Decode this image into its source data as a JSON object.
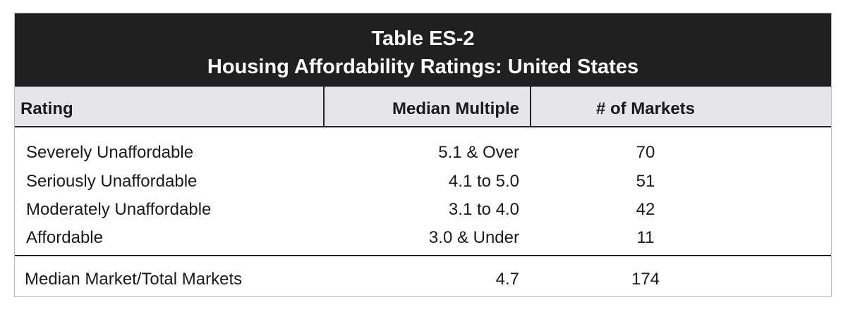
{
  "table": {
    "title": "Table ES-2",
    "subtitle": "Housing Affordability Ratings: United States",
    "headers": [
      "Rating",
      "Median Multiple",
      "# of Markets"
    ],
    "rows": [
      {
        "rating": "Severely Unaffordable",
        "multiple": "5.1 & Over",
        "markets": "70"
      },
      {
        "rating": "Seriously Unaffordable",
        "multiple": "4.1 to 5.0",
        "markets": "51"
      },
      {
        "rating": "Moderately Unaffordable",
        "multiple": "3.1 to 4.0",
        "markets": "42"
      },
      {
        "rating": "Affordable",
        "multiple": "3.0 & Under",
        "markets": "11"
      }
    ],
    "summary": {
      "rating": "Median Market/Total Markets",
      "multiple": "4.7",
      "markets": "174"
    }
  },
  "colors": {
    "title_bg": "#202020",
    "header_bg": "#e6e5ea",
    "rule": "#222222"
  }
}
